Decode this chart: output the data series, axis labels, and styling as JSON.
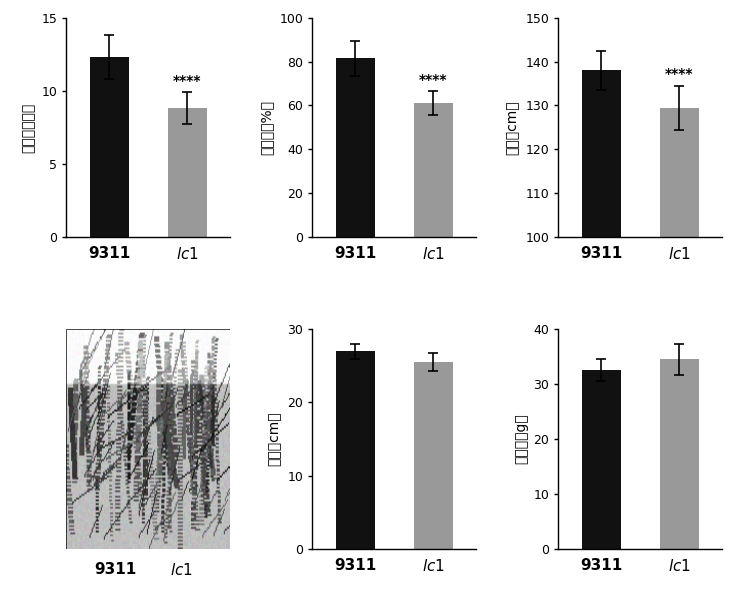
{
  "panel1": {
    "ylabel": "分蘖数（个）",
    "categories": [
      "9311",
      "lc1"
    ],
    "values": [
      12.3,
      8.8
    ],
    "errors": [
      1.5,
      1.1
    ],
    "ylim": [
      0,
      15
    ],
    "yticks": [
      0,
      5,
      10,
      15
    ],
    "bar_colors": [
      "#111111",
      "#999999"
    ],
    "significance": "****",
    "sig_on_bar": 1
  },
  "panel2": {
    "ylabel": "结实率（%）",
    "categories": [
      "9311",
      "lc1"
    ],
    "values": [
      81.5,
      61.0
    ],
    "errors": [
      8.0,
      5.5
    ],
    "ylim": [
      0,
      100
    ],
    "yticks": [
      0,
      20,
      40,
      60,
      80,
      100
    ],
    "bar_colors": [
      "#111111",
      "#999999"
    ],
    "significance": "****",
    "sig_on_bar": 1
  },
  "panel3": {
    "ylabel": "株高（cm）",
    "categories": [
      "9311",
      "lc1"
    ],
    "values": [
      138.0,
      129.5
    ],
    "errors": [
      4.5,
      5.0
    ],
    "ylim": [
      100,
      150
    ],
    "yticks": [
      100,
      110,
      120,
      130,
      140,
      150
    ],
    "bar_colors": [
      "#111111",
      "#999999"
    ],
    "significance": "****",
    "sig_on_bar": 1
  },
  "panel5": {
    "ylabel": "穗长（cm）",
    "categories": [
      "9311",
      "lc1"
    ],
    "values": [
      27.0,
      25.5
    ],
    "errors": [
      1.0,
      1.2
    ],
    "ylim": [
      0,
      30
    ],
    "yticks": [
      0,
      10,
      20,
      30
    ],
    "bar_colors": [
      "#111111",
      "#999999"
    ],
    "significance": "",
    "sig_on_bar": 0
  },
  "panel6": {
    "ylabel": "千粒重（g）",
    "categories": [
      "9311",
      "lc1"
    ],
    "values": [
      32.5,
      34.5
    ],
    "errors": [
      2.0,
      2.8
    ],
    "ylim": [
      0,
      40
    ],
    "yticks": [
      0,
      10,
      20,
      30,
      40
    ],
    "bar_colors": [
      "#111111",
      "#999999"
    ],
    "significance": "",
    "sig_on_bar": 0
  },
  "xlabel_fontsize": 11,
  "ylabel_fontsize": 10,
  "tick_fontsize": 9,
  "sig_fontsize": 10,
  "bar_width": 0.5,
  "background_color": "#ffffff",
  "photo_label_9311": "9311",
  "photo_label_lc1": "lc1"
}
